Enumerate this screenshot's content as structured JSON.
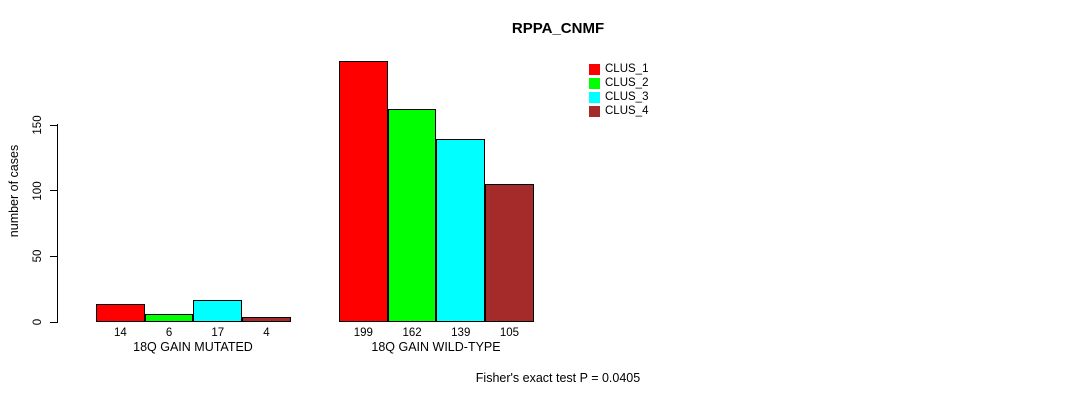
{
  "chart_data": {
    "type": "bar",
    "title": "RPPA_CNMF",
    "ylabel": "number of cases",
    "xlabel": "",
    "categories": [
      "18Q GAIN MUTATED",
      "18Q GAIN WILD-TYPE"
    ],
    "series": [
      {
        "name": "CLUS_1",
        "color": "#ff0000",
        "values": [
          14,
          199
        ]
      },
      {
        "name": "CLUS_2",
        "color": "#00ff00",
        "values": [
          6,
          162
        ]
      },
      {
        "name": "CLUS_3",
        "color": "#00ffff",
        "values": [
          17,
          139
        ]
      },
      {
        "name": "CLUS_4",
        "color": "#a52a2a",
        "values": [
          4,
          105
        ]
      }
    ],
    "yticks": [
      0,
      50,
      100,
      150
    ],
    "ylim": [
      0,
      150
    ],
    "grid": false,
    "legend_position": "top-right",
    "bar_border_color": "#000000",
    "background_color": "#ffffff",
    "annotation": "Fisher's exact test P = 0.0405"
  }
}
